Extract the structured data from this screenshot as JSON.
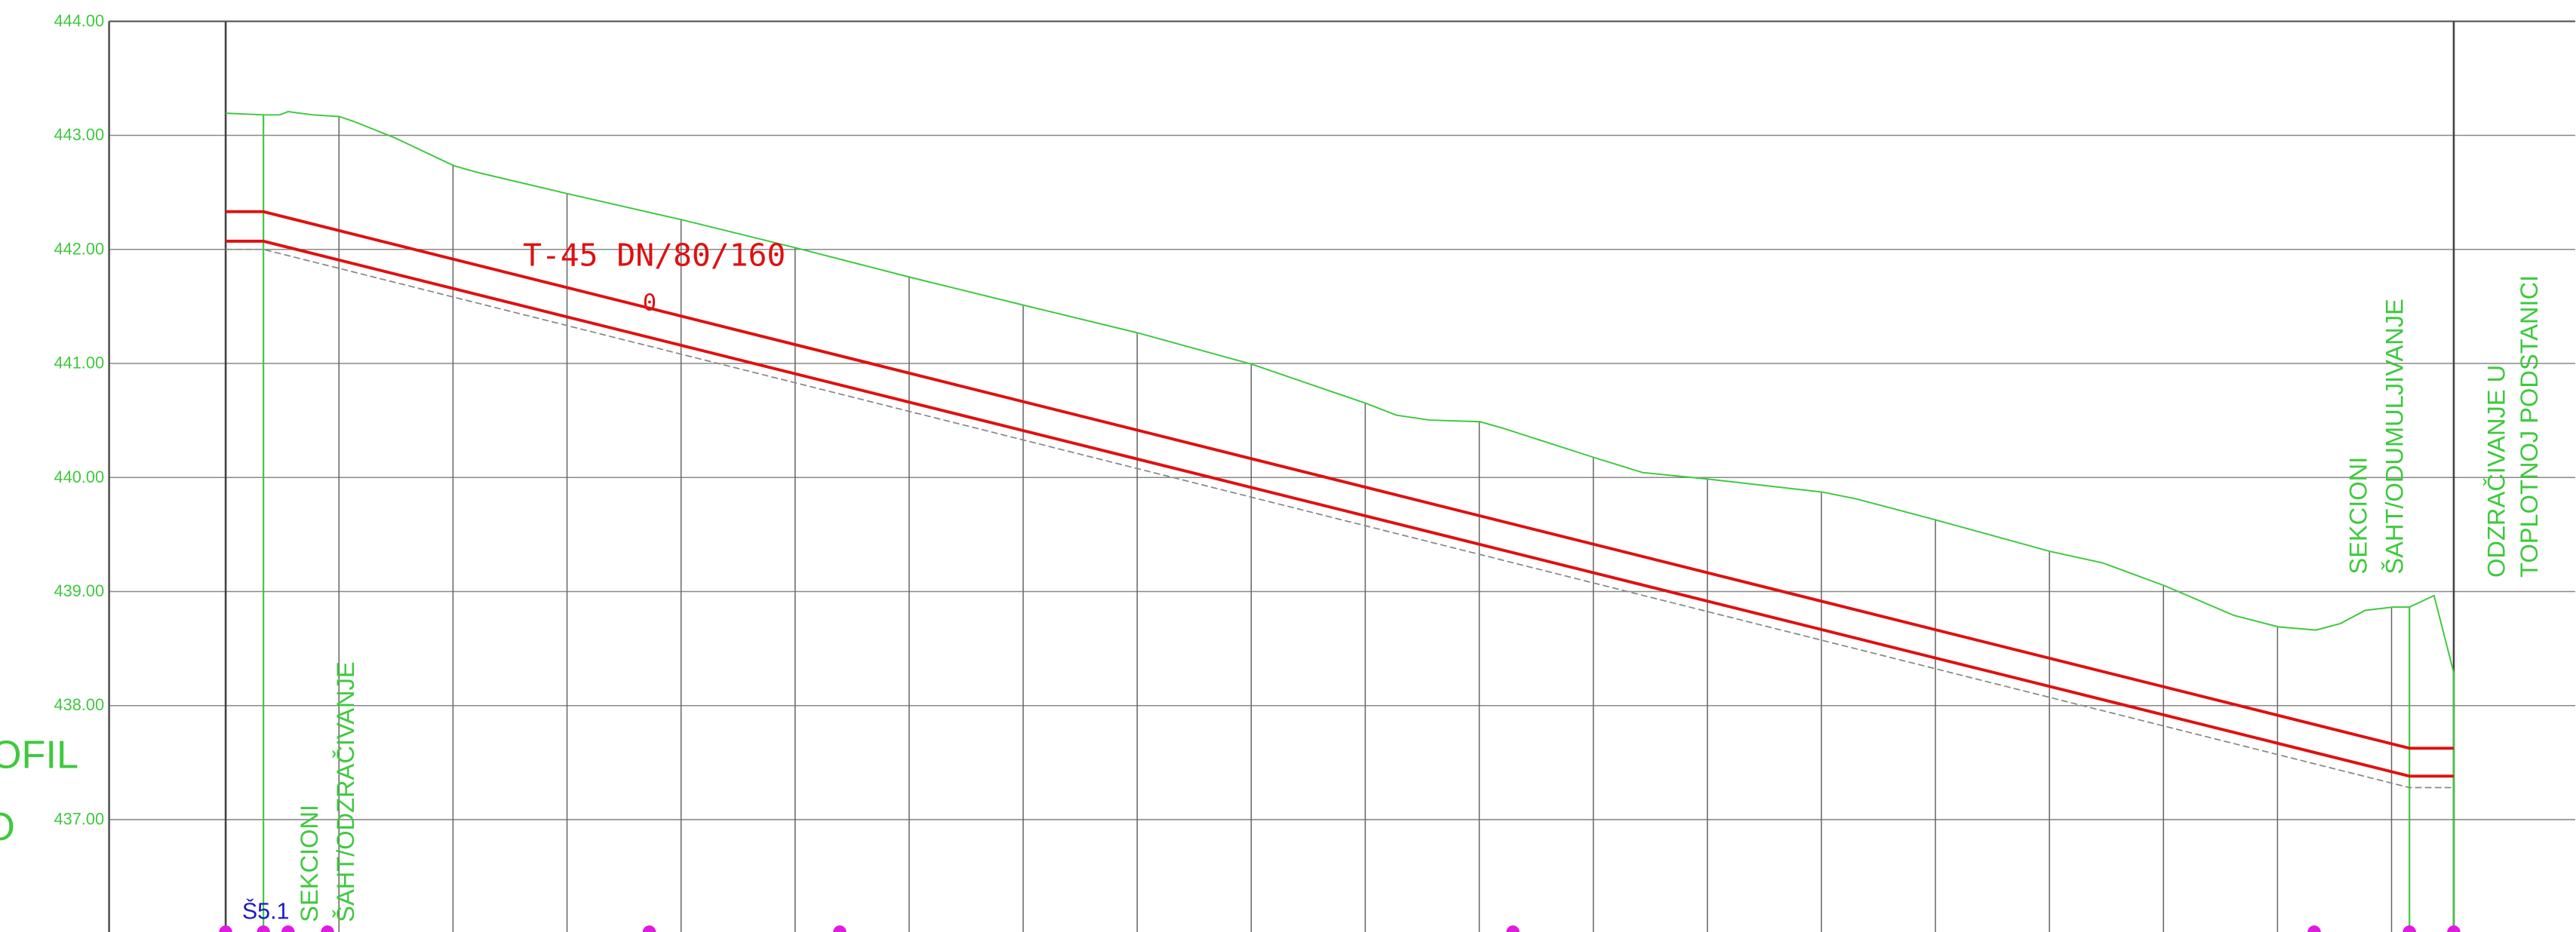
{
  "elevation_labels": [
    "444.00",
    "443.00",
    "442.00",
    "441.00",
    "440.00",
    "439.00",
    "438.00",
    "437.00"
  ],
  "pipe_label": "T-45 DN/80/160",
  "pipe_sublabel": "0",
  "station_label": "Š5.1",
  "annotations": [
    {
      "lines": [
        "SEKCIONI",
        "ŠAHT/ODZRAČIVANJE"
      ]
    },
    {
      "lines": [
        "SEKCIONI",
        "ŠAHT/ODUMULJIVANJE"
      ]
    },
    {
      "lines": [
        "ODZRAČIVANJE U",
        "TOPLOTNOJ PODSTANICI"
      ]
    }
  ],
  "side_title": [
    "OFIL",
    "O"
  ]
}
